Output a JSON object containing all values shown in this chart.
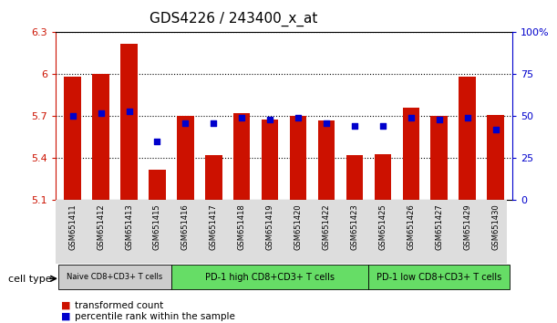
{
  "title": "GDS4226 / 243400_x_at",
  "samples": [
    "GSM651411",
    "GSM651412",
    "GSM651413",
    "GSM651415",
    "GSM651416",
    "GSM651417",
    "GSM651418",
    "GSM651419",
    "GSM651420",
    "GSM651422",
    "GSM651423",
    "GSM651425",
    "GSM651426",
    "GSM651427",
    "GSM651429",
    "GSM651430"
  ],
  "bar_values": [
    5.98,
    6.0,
    6.22,
    5.32,
    5.7,
    5.42,
    5.72,
    5.68,
    5.7,
    5.67,
    5.42,
    5.43,
    5.76,
    5.7,
    5.98,
    5.71
  ],
  "dot_values_pct": [
    50,
    52,
    53,
    35,
    46,
    46,
    49,
    48,
    49,
    46,
    44,
    44,
    49,
    48,
    49,
    42
  ],
  "bar_color": "#cc1100",
  "dot_color": "#0000cc",
  "ylim_left": [
    5.1,
    6.3
  ],
  "ylim_right": [
    0,
    100
  ],
  "yticks_left": [
    5.1,
    5.4,
    5.7,
    6.0,
    6.3
  ],
  "yticks_right": [
    0,
    25,
    50,
    75,
    100
  ],
  "ytick_labels_left": [
    "5.1",
    "5.4",
    "5.7",
    "6",
    "6.3"
  ],
  "ytick_labels_right": [
    "0",
    "25",
    "50",
    "75",
    "100%"
  ],
  "groups": [
    {
      "label": "Naive CD8+CD3+ T cells",
      "start": 0,
      "end": 4,
      "color": "#cccccc"
    },
    {
      "label": "PD-1 high CD8+CD3+ T cells",
      "start": 4,
      "end": 11,
      "color": "#66dd66"
    },
    {
      "label": "PD-1 low CD8+CD3+ T cells",
      "start": 11,
      "end": 16,
      "color": "#66dd66"
    }
  ],
  "legend_items": [
    {
      "label": "transformed count",
      "color": "#cc1100"
    },
    {
      "label": "percentile rank within the sample",
      "color": "#0000cc"
    }
  ],
  "cell_type_label": "cell type",
  "background_color": "#ffffff",
  "plot_bg_color": "#ffffff",
  "gridline_color": "#000000"
}
